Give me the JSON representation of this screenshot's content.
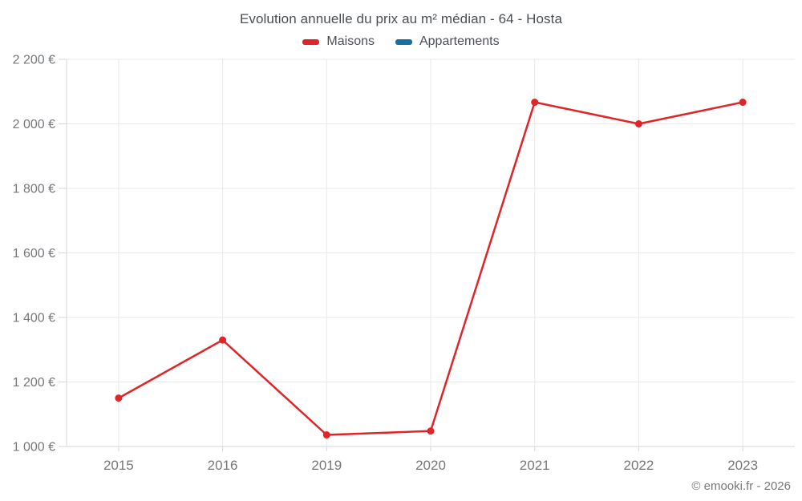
{
  "header": {
    "title": "Evolution annuelle du prix au m² médian - 64 - Hosta",
    "legend": [
      {
        "label": "Maisons",
        "color": "#e02529"
      },
      {
        "label": "Appartements",
        "color": "#166f9e"
      }
    ]
  },
  "footer": {
    "copyright": "© emooki.fr - 2026"
  },
  "chart_data": {
    "type": "line",
    "title": "Evolution annuelle du prix au m² médian - 64 - Hosta",
    "categories": [
      "2015",
      "2016",
      "2019",
      "2020",
      "2021",
      "2022",
      "2023"
    ],
    "series": [
      {
        "name": "Maisons",
        "color": "#e02529",
        "values": [
          1150,
          1330,
          1036,
          1048,
          2067,
          2000,
          2067
        ]
      },
      {
        "name": "Appartements",
        "color": "#166f9e",
        "values": []
      }
    ],
    "xlabel": "",
    "ylabel": "",
    "ylim": [
      1000,
      2200
    ],
    "ytick_step": 200,
    "ytick_suffix": " €",
    "grid": true,
    "legend_position": "top",
    "marker": "circle"
  }
}
